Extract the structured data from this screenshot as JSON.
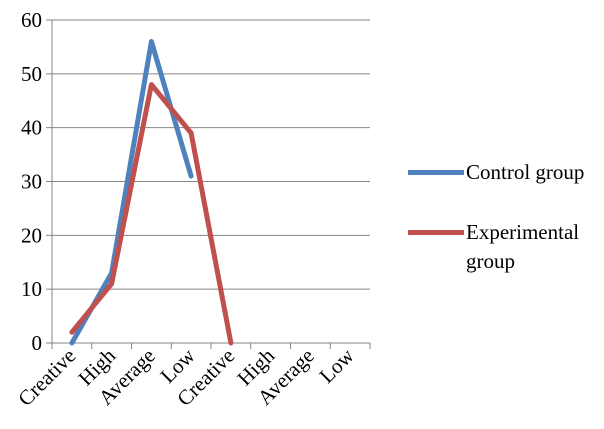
{
  "chart_data": {
    "type": "line",
    "categories": [
      "Creative",
      "High",
      "Average",
      "Low",
      "Creative",
      "High",
      "Average",
      "Low"
    ],
    "series": [
      {
        "name": "Control group",
        "color": "#4f81bd",
        "values": [
          0,
          13,
          56,
          31,
          null,
          null,
          null,
          null
        ]
      },
      {
        "name": "Experimental group",
        "color": "#c0504d",
        "values": [
          2,
          11,
          48,
          39,
          0,
          null,
          null,
          null
        ]
      }
    ],
    "y_ticks": [
      "0",
      "10",
      "20",
      "30",
      "40",
      "50",
      "60"
    ],
    "ylim": [
      0,
      60
    ],
    "grid": true,
    "legend_position": "right"
  }
}
